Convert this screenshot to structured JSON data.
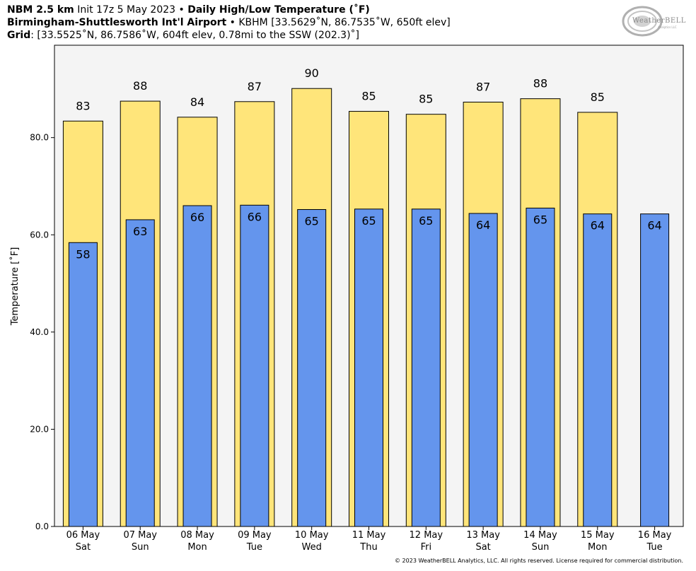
{
  "header": {
    "line1": {
      "model": "NBM 2.5 km",
      "init": "Init 17z 5 May 2023",
      "sep": "•",
      "product": "Daily High/Low Temperature (˚F)"
    },
    "line2": {
      "station": "Birmingham-Shuttlesworth Int'l Airport",
      "sep": "•",
      "details": "KBHM [33.5629˚N, 86.7535˚W, 650ft elev]"
    },
    "line3": {
      "label": "Grid",
      "details": ": [33.5525˚N, 86.7586˚W, 604ft elev, 0.78mi to the SSW (202.3)˚]"
    }
  },
  "logo": {
    "text": "WeatherBELL",
    "subtext": "Analytics LLC"
  },
  "footer": {
    "copyright": "© 2023 WeatherBELL Analytics, LLC. All rights reserved. License required for commercial distribution."
  },
  "colors": {
    "high": "#FFE57A",
    "low": "#6495ED",
    "plot_bg": "#F4F4F4",
    "edge": "#000000"
  },
  "chart_data": {
    "type": "bar",
    "title": "Daily High/Low Temperature (˚F)",
    "ylabel": "Temperature [˚F]",
    "xlabel": "",
    "ylim": [
      0,
      99
    ],
    "yticks": [
      "0.0",
      "20.0",
      "40.0",
      "60.0",
      "80.0"
    ],
    "grid": false,
    "categories": [
      {
        "date": "06 May",
        "day": "Sat"
      },
      {
        "date": "07 May",
        "day": "Sun"
      },
      {
        "date": "08 May",
        "day": "Mon"
      },
      {
        "date": "09 May",
        "day": "Tue"
      },
      {
        "date": "10 May",
        "day": "Wed"
      },
      {
        "date": "11 May",
        "day": "Thu"
      },
      {
        "date": "12 May",
        "day": "Fri"
      },
      {
        "date": "13 May",
        "day": "Sat"
      },
      {
        "date": "14 May",
        "day": "Sun"
      },
      {
        "date": "15 May",
        "day": "Mon"
      },
      {
        "date": "16 May",
        "day": "Tue"
      }
    ],
    "series": [
      {
        "values": [
          83.4,
          87.5,
          84.2,
          87.4,
          90.1,
          85.4,
          84.8,
          87.3,
          88.0,
          85.2,
          null
        ],
        "labels": [
          "83",
          "88",
          "84",
          "87",
          "90",
          "85",
          "85",
          "87",
          "88",
          "85",
          ""
        ]
      },
      {
        "values": [
          58.4,
          63.1,
          66.0,
          66.1,
          65.2,
          65.3,
          65.3,
          64.4,
          65.5,
          64.3,
          64.3
        ],
        "labels": [
          "58",
          "63",
          "66",
          "66",
          "65",
          "65",
          "65",
          "64",
          "65",
          "64",
          "64"
        ]
      }
    ]
  }
}
